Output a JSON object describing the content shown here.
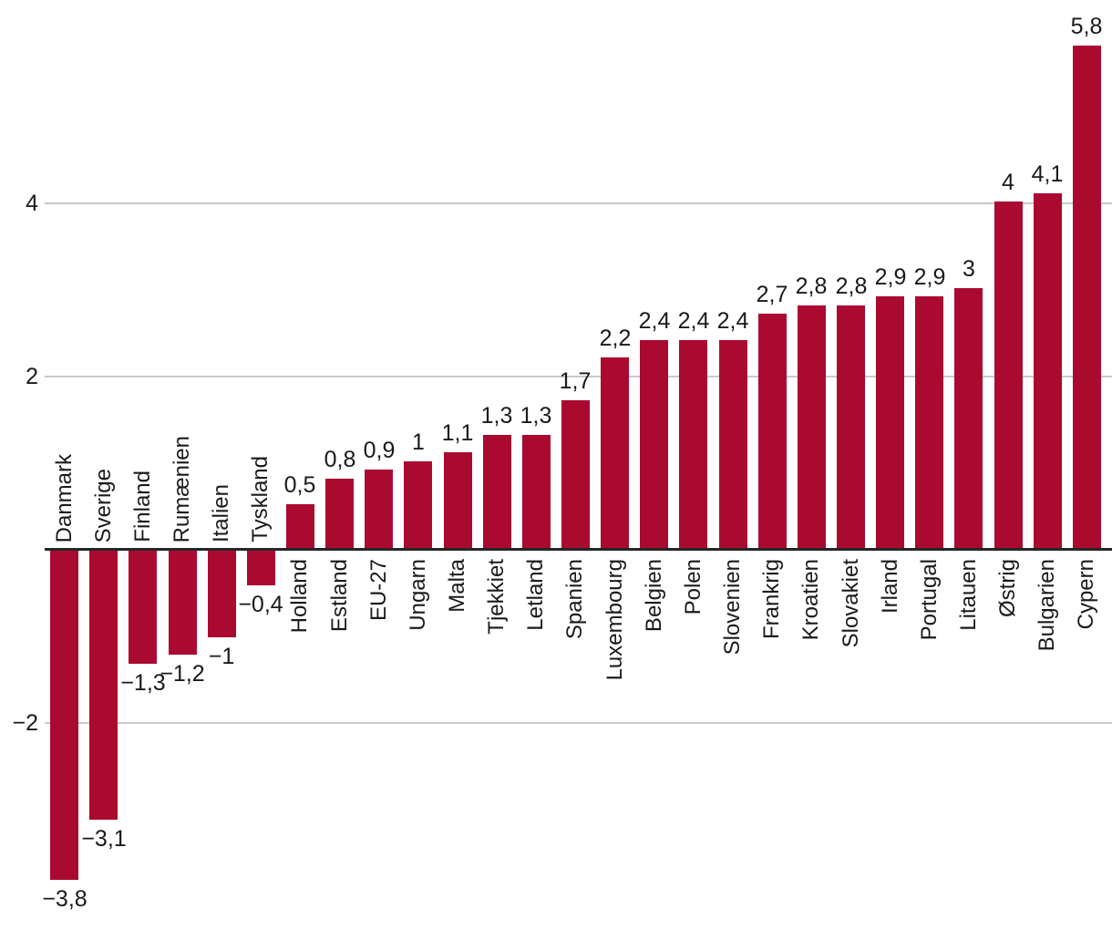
{
  "chart_data": {
    "type": "bar",
    "title": "",
    "xlabel": "",
    "ylabel": "",
    "ylim": [
      -4.2,
      6.2
    ],
    "grid": "horizontal-lines",
    "legend": "none",
    "decimal_style": "comma",
    "categories": [
      "Danmark",
      "Sverige",
      "Finland",
      "Rumænien",
      "Italien",
      "Tyskland",
      "Holland",
      "Estland",
      "EU-27",
      "Ungarn",
      "Malta",
      "Tjekkiet",
      "Letland",
      "Spanien",
      "Luxembourg",
      "Belgien",
      "Polen",
      "Slovenien",
      "Frankrig",
      "Kroatien",
      "Slovakiet",
      "Irland",
      "Portugal",
      "Litauen",
      "Østrig",
      "Bulgarien",
      "Cypern"
    ],
    "values": [
      -3.8,
      -3.1,
      -1.3,
      -1.2,
      -1,
      -0.4,
      0.5,
      0.8,
      0.9,
      1,
      1.1,
      1.3,
      1.3,
      1.7,
      2.2,
      2.4,
      2.4,
      2.4,
      2.7,
      2.8,
      2.8,
      2.9,
      2.9,
      3,
      4,
      4.1,
      5.8
    ],
    "value_labels": [
      "−3,8",
      "−3,1",
      "−1,3",
      "−1,2",
      "−1",
      "−0,4",
      "0,5",
      "0,8",
      "0,9",
      "1",
      "1,1",
      "1,3",
      "1,3",
      "1,7",
      "2,2",
      "2,4",
      "2,4",
      "2,4",
      "2,7",
      "2,8",
      "2,8",
      "2,9",
      "2,9",
      "3",
      "4",
      "4,1",
      "5,8"
    ],
    "yticks": [
      {
        "value": 4,
        "label": "4"
      },
      {
        "value": 2,
        "label": "2"
      },
      {
        "value": -2,
        "label": "−2"
      }
    ],
    "colors": {
      "bar": "#ab0a30",
      "axis": "#262626",
      "gridline": "#c9c9c9",
      "text": "#1a1a1a"
    }
  }
}
